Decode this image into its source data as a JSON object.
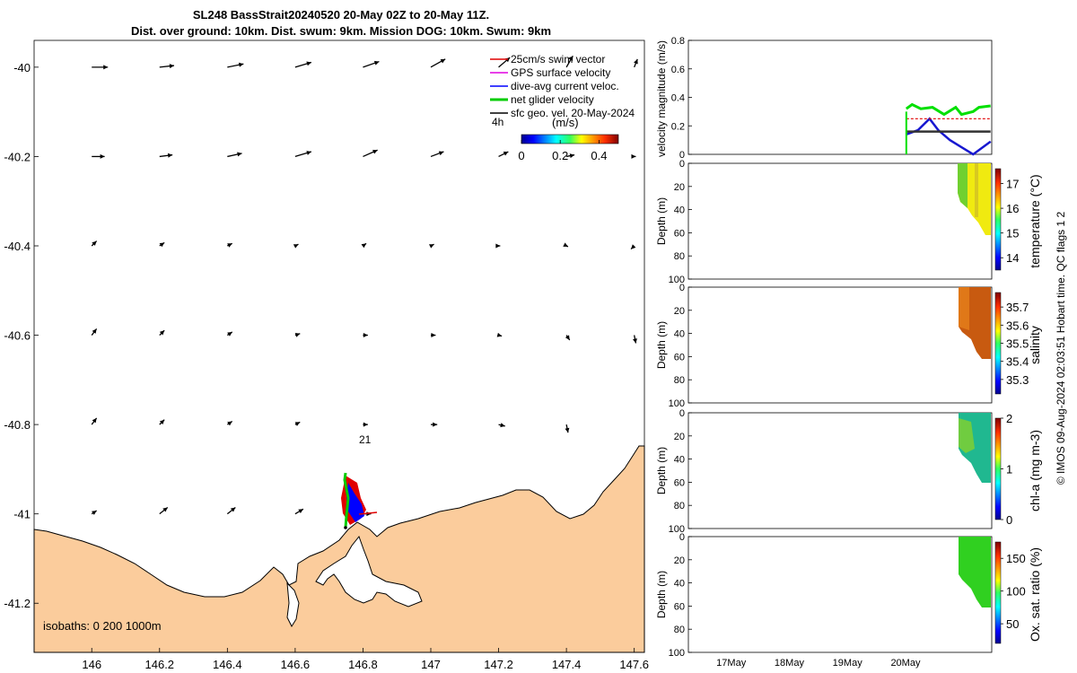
{
  "title_line1": "SL248 BassStrait20240520 20-May 02Z to 20-May 11Z.",
  "title_line2": "Dist. over ground: 10km. Dist. swum: 9km. Mission DOG: 10km. Swum: 9km",
  "map": {
    "xticks": [
      "146",
      "146.2",
      "146.4",
      "146.6",
      "146.8",
      "147",
      "147.2",
      "147.4",
      "147.6"
    ],
    "yticks": [
      "-40",
      "-40.2",
      "-40.4",
      "-40.6",
      "-40.8",
      "-41",
      "-41.2"
    ],
    "xlim": [
      145.83,
      147.63
    ],
    "ylim": [
      -41.31,
      -39.94
    ],
    "legend": [
      {
        "label": "25cm/s swim vector",
        "color": "#e00000"
      },
      {
        "label": "GPS surface velocity",
        "color": "#e000e0"
      },
      {
        "label": "dive-avg current veloc.",
        "color": "#0000ff"
      },
      {
        "label": "net glider velocity",
        "color": "#00cc00"
      },
      {
        "label": "sfc geo. vel. 20-May-2024",
        "color": "#000000"
      }
    ],
    "time_label": "4h",
    "colorbar": {
      "label": "(m/s)",
      "ticks": [
        "0",
        "0.2",
        "0.4"
      ],
      "range": [
        0,
        0.5
      ]
    },
    "isobaths_label": "isobaths: 0   200  1000m",
    "annotation": "21",
    "land_color": "#fbcc9c"
  },
  "panels": {
    "velocity": {
      "ylabel": "velocity magnitude (m/s)",
      "yticks": [
        "0",
        "0.2",
        "0.4",
        "0.6",
        "0.8"
      ]
    },
    "temperature": {
      "label": "temperature (°C)",
      "ticks": [
        "14",
        "15",
        "16",
        "17"
      ]
    },
    "salinity": {
      "label": "salinity",
      "ticks": [
        "35.3",
        "35.4",
        "35.5",
        "35.6",
        "35.7"
      ]
    },
    "chla": {
      "label": "chl-a (mg m-3)",
      "ticks": [
        "0",
        "1",
        "2"
      ]
    },
    "oxygen": {
      "label": "Ox. sat. ratio (%)",
      "ticks": [
        "50",
        "100",
        "150"
      ]
    },
    "depth_label": "Depth (m)",
    "depth_ticks": [
      "0",
      "20",
      "40",
      "60",
      "80",
      "100"
    ],
    "xticks": [
      "17May",
      "18May",
      "19May",
      "20May"
    ]
  },
  "footer": "© IMOS 09-Aug-2024 02:03:51 Hobart time. QC flags 1  2",
  "chart_data": [
    {
      "type": "scatter",
      "title": "SL248 BassStrait20240520 20-May 02Z to 20-May 11Z.",
      "xlabel": "",
      "ylabel": "",
      "xlim": [
        145.83,
        147.63
      ],
      "ylim": [
        -41.31,
        -39.94
      ],
      "series": [
        {
          "name": "net glider velocity",
          "x": [
            146.74,
            146.735,
            146.73,
            146.728,
            146.735,
            146.74
          ],
          "y": [
            -40.93,
            -40.95,
            -40.98,
            -41.01,
            -41.03,
            -41.04
          ]
        }
      ]
    },
    {
      "type": "line",
      "xlabel": "",
      "ylabel": "velocity magnitude (m/s)",
      "categories": [
        "17May",
        "18May",
        "19May",
        "20May"
      ],
      "ylim": [
        0,
        0.8
      ],
      "series": [
        {
          "name": "net glider velocity",
          "x": [
            20.05,
            20.15,
            20.3,
            20.5,
            20.7,
            20.9,
            21.0,
            21.2,
            21.3,
            21.5
          ],
          "values": [
            0.32,
            0.35,
            0.32,
            0.33,
            0.28,
            0.33,
            0.28,
            0.3,
            0.33,
            0.34
          ]
        },
        {
          "name": "dive-avg current veloc.",
          "x": [
            20.05,
            20.25,
            20.45,
            20.6,
            20.8,
            21.0,
            21.2,
            21.4,
            21.5
          ],
          "values": [
            0.14,
            0.17,
            0.25,
            0.17,
            0.1,
            0.05,
            0.0,
            0.06,
            0.09
          ]
        },
        {
          "name": "sfc geo. vel. 20-May-2024",
          "x": [
            20.05,
            20.5,
            21.0,
            21.5
          ],
          "values": [
            0.16,
            0.16,
            0.16,
            0.16
          ]
        },
        {
          "name": "25cm/s swim vector",
          "x": [
            20.05,
            20.5,
            21.0,
            21.5
          ],
          "values": [
            0.25,
            0.25,
            0.25,
            0.25
          ]
        }
      ]
    }
  ]
}
